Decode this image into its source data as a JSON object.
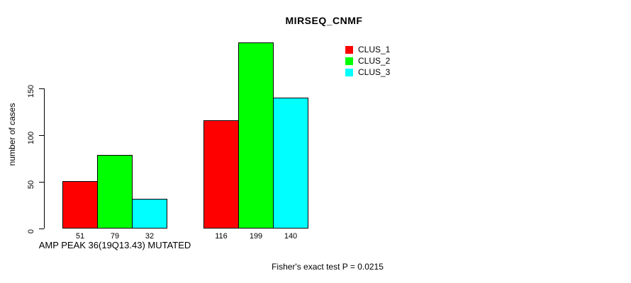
{
  "chart_data": {
    "type": "bar",
    "title": "MIRSEQ_CNMF",
    "ylabel": "number of cases",
    "xlabel": "",
    "yticks": [
      0,
      50,
      100,
      150
    ],
    "ylim": [
      0,
      205
    ],
    "grid": false,
    "bar_value_labels_shown": true,
    "categories": [
      "AMP PEAK 36(19Q13.43) MUTATED",
      ""
    ],
    "series": [
      {
        "name": "CLUS_1",
        "color": "#ff0000",
        "values": [
          51,
          116
        ]
      },
      {
        "name": "CLUS_2",
        "color": "#00ff00",
        "values": [
          79,
          199
        ]
      },
      {
        "name": "CLUS_3",
        "color": "#00ffff",
        "values": [
          32,
          140
        ]
      }
    ],
    "legend": {
      "position": "top-right",
      "entries": [
        {
          "label": "CLUS_1",
          "color": "#ff0000"
        },
        {
          "label": "CLUS_2",
          "color": "#00ff00"
        },
        {
          "label": "CLUS_3",
          "color": "#00ffff"
        }
      ]
    },
    "annotation": "Fisher's exact test P = 0.0215",
    "colors": {
      "background": "#ffffff",
      "axis": "#000000",
      "text": "#000000",
      "bar_border": "#000000"
    }
  }
}
